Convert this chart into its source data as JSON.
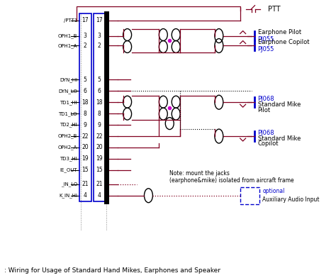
{
  "title": ": Wiring for Usage of Standard Hand Mikes, Earphones and Speaker",
  "bg_color": "#ffffff",
  "dark_red": "#800020",
  "blue": "#0000CC",
  "black": "#000000",
  "magenta": "#CC00CC",
  "gray": "#888888",
  "connector_rows": [
    {
      "label": "/PTT1",
      "nums": [
        "17",
        "17"
      ],
      "yi": 0
    },
    {
      "label": "OPH1_B",
      "nums": [
        "3",
        "3"
      ],
      "yi": 1
    },
    {
      "label": "OPH1_A",
      "nums": [
        "2",
        "2"
      ],
      "yi": 2
    },
    {
      "label": "DYN_HI",
      "nums": [
        "5",
        "5"
      ],
      "yi": 3
    },
    {
      "label": "DYN_LO",
      "nums": [
        "6",
        "6"
      ],
      "yi": 4
    },
    {
      "label": "TD1_HI",
      "nums": [
        "18",
        "18"
      ],
      "yi": 5
    },
    {
      "label": "TD1_LO",
      "nums": [
        "8",
        "8"
      ],
      "yi": 6
    },
    {
      "label": "TD2_HI",
      "nums": [
        "9",
        "9"
      ],
      "yi": 7
    },
    {
      "label": "OPH2_B",
      "nums": [
        "22",
        "22"
      ],
      "yi": 8
    },
    {
      "label": "OPH2_A",
      "nums": [
        "20",
        "20"
      ],
      "yi": 9
    },
    {
      "label": "TD3_HI",
      "nums": [
        "19",
        "19"
      ],
      "yi": 10
    },
    {
      "label": "IE_OUT",
      "nums": [
        "15",
        "15"
      ],
      "yi": 11
    },
    {
      "label": "_IN_LO",
      "nums": [
        "21",
        "21"
      ],
      "yi": 12
    },
    {
      "label": "K_IN_HI",
      "nums": [
        "4",
        "4"
      ],
      "yi": 13
    }
  ],
  "note_text": "Note: mount the jacks\n(earphone&mike) isolated from aircraft frame",
  "optional_text": "optional",
  "aux_text": "Auxiliary Audio Input"
}
